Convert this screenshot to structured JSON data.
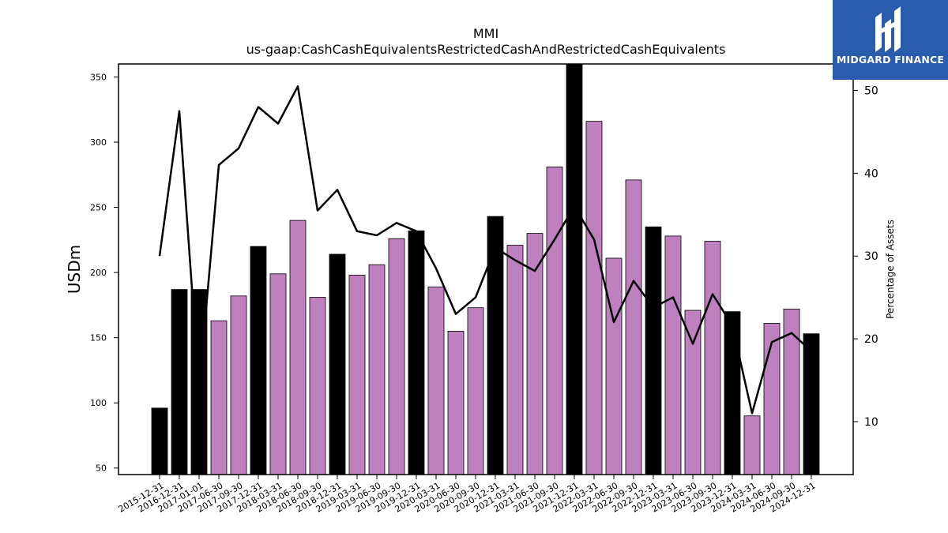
{
  "brand": {
    "name": "MIDGARD FINANCE",
    "color": "#2a5cad"
  },
  "chart_data": {
    "type": "bar",
    "title": "MMI",
    "subtitle": "us-gaap:CashCashEquivalentsRestrictedCashAndRestrictedCashEquivalents",
    "ylabel": "USDm",
    "ylabel_right": "Percentage of Assets",
    "ylim": [
      45,
      360
    ],
    "ylim_right": [
      3.6,
      53.2
    ],
    "yticks": [
      50,
      100,
      150,
      200,
      250,
      300,
      350
    ],
    "yticks_right": [
      10,
      20,
      30,
      40,
      50
    ],
    "grid": false,
    "colors": {
      "annual": "#000000",
      "quarterly": "#bf80bf",
      "line": "#000000"
    },
    "categories": [
      "2015-12-31",
      "2016-12-31",
      "2017-01-01",
      "2017-06-30",
      "2017-09-30",
      "2017-12-31",
      "2018-03-31",
      "2018-06-30",
      "2018-09-30",
      "2018-12-31",
      "2019-03-31",
      "2019-06-30",
      "2019-09-30",
      "2019-12-31",
      "2020-03-31",
      "2020-06-30",
      "2020-09-30",
      "2020-12-31",
      "2021-03-31",
      "2021-06-30",
      "2021-09-30",
      "2021-12-31",
      "2022-03-31",
      "2022-06-30",
      "2022-09-30",
      "2022-12-31",
      "2023-03-31",
      "2023-06-30",
      "2023-09-30",
      "2023-12-31",
      "2024-03-31",
      "2024-06-30",
      "2024-09-30",
      "2024-12-31"
    ],
    "series": [
      {
        "kind": "bar",
        "values": [
          96,
          187,
          187,
          163,
          182,
          220,
          199,
          240,
          181,
          214,
          198,
          206,
          226,
          232,
          189,
          155,
          173,
          243,
          221,
          230,
          281,
          362,
          316,
          211,
          271,
          235,
          228,
          171,
          224,
          170,
          90,
          161,
          172,
          153
        ],
        "annual": [
          true,
          true,
          true,
          false,
          false,
          true,
          false,
          false,
          false,
          true,
          false,
          false,
          false,
          true,
          false,
          false,
          false,
          true,
          false,
          false,
          false,
          true,
          false,
          false,
          false,
          true,
          false,
          false,
          false,
          true,
          false,
          false,
          false,
          true
        ]
      },
      {
        "kind": "line",
        "axis": "right",
        "values": [
          30.0,
          47.5,
          14.0,
          41.0,
          43.0,
          48.0,
          46.0,
          50.5,
          35.5,
          38.0,
          33.0,
          32.5,
          34.0,
          33.0,
          28.5,
          23.0,
          25.0,
          31.0,
          29.5,
          28.2,
          32.0,
          36.0,
          32.0,
          22.0,
          27.0,
          23.8,
          25.0,
          19.4,
          25.4,
          21.6,
          11.0,
          19.6,
          20.7,
          18.5
        ]
      }
    ]
  }
}
